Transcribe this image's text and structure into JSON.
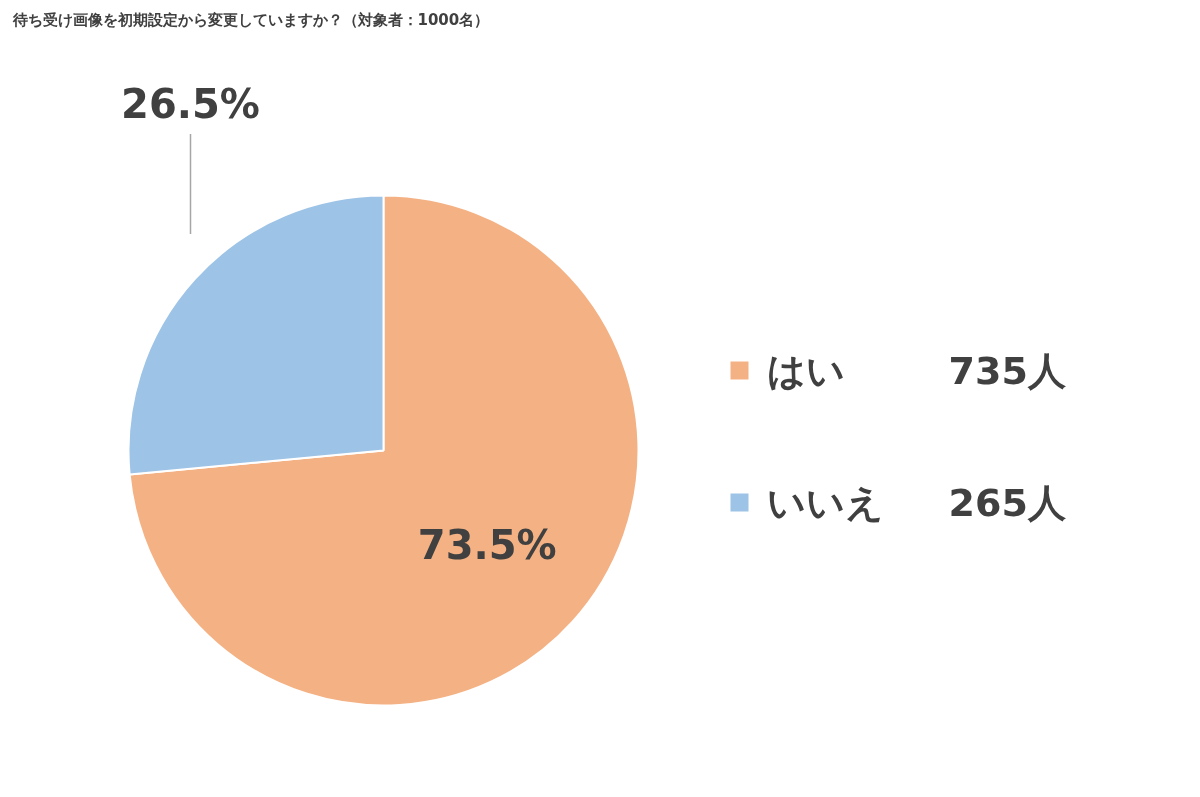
{
  "chart_data": {
    "type": "pie",
    "title": "待ち受け画像を初期設定から変更していますか？（対象者：1000名）",
    "categories": [
      "はい",
      "いいえ"
    ],
    "values": [
      73.5,
      26.5
    ],
    "colors": [
      "#f4b183",
      "#9dc3e6"
    ],
    "value_labels": [
      "73.5%",
      "26.5%"
    ],
    "annotations": [
      "735人",
      "265人"
    ],
    "legend": "right"
  }
}
